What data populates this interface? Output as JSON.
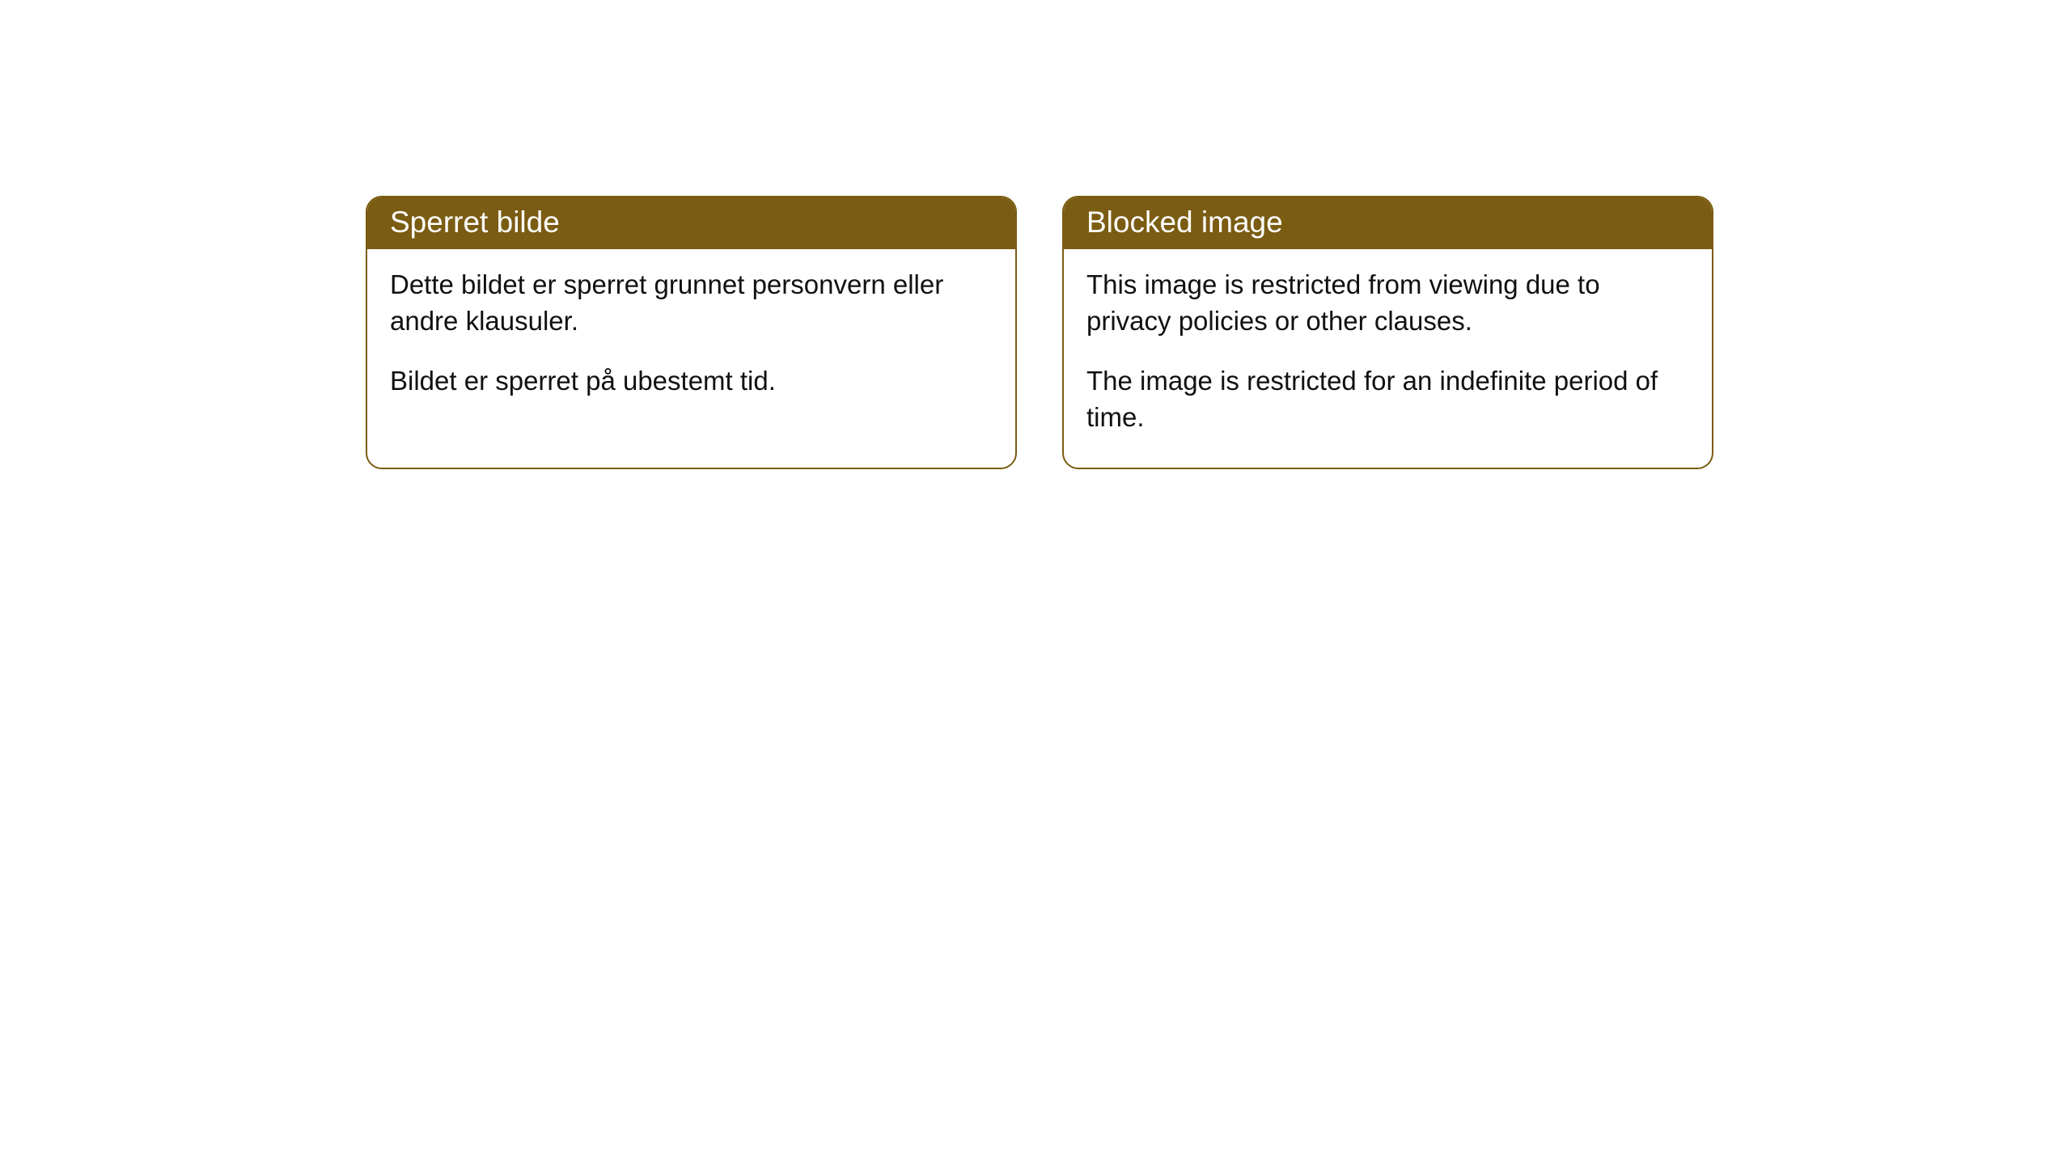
{
  "cards": [
    {
      "title": "Sperret bilde",
      "paragraph1": "Dette bildet er sperret grunnet personvern eller andre klausuler.",
      "paragraph2": "Bildet er sperret på ubestemt tid."
    },
    {
      "title": "Blocked image",
      "paragraph1": "This image is restricted from viewing due to privacy policies or other clauses.",
      "paragraph2": "The image is restricted for an indefinite period of time."
    }
  ],
  "colors": {
    "header_bg": "#7a5c12",
    "header_text": "#ffffff",
    "body_text": "#111111",
    "card_bg": "#ffffff",
    "border": "#7a5c12"
  }
}
